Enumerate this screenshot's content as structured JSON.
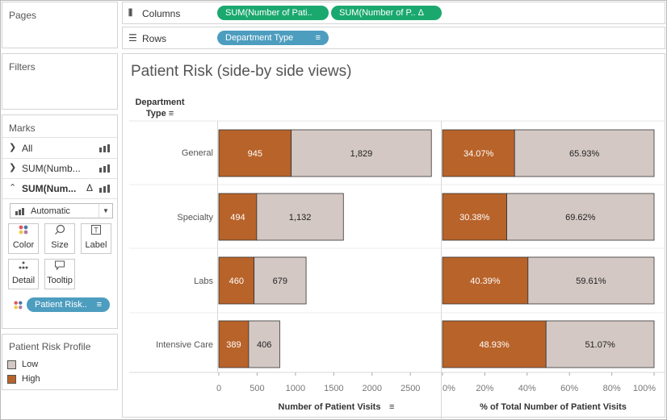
{
  "panels": {
    "pages_title": "Pages",
    "filters_title": "Filters",
    "marks_title": "Marks"
  },
  "shelves": {
    "columns": {
      "label": "Columns",
      "pills": [
        "SUM(Number of Pati..",
        "SUM(Number of P.. Δ"
      ]
    },
    "rows": {
      "label": "Rows",
      "pills": [
        "Department Type"
      ]
    }
  },
  "marks": {
    "rows": [
      {
        "label": "All",
        "expanded": false,
        "delta": ""
      },
      {
        "label": "SUM(Numb...",
        "expanded": false,
        "delta": ""
      },
      {
        "label": "SUM(Num...",
        "expanded": true,
        "delta": "Δ"
      }
    ],
    "mark_type": "Automatic",
    "buttons": [
      "Color",
      "Size",
      "Label",
      "Detail",
      "Tooltip"
    ],
    "color_pill": "Patient Risk.."
  },
  "legend": {
    "title": "Patient Risk Profile",
    "items": [
      {
        "label": "Low",
        "color": "#d4c8c4"
      },
      {
        "label": "High",
        "color": "#b8632a"
      }
    ]
  },
  "chart_data": {
    "type": "bar",
    "title": "Patient Risk (side-by side views)",
    "row_header": [
      "Department",
      "Type"
    ],
    "categories": [
      "General",
      "Specialty",
      "Labs",
      "Intensive Care"
    ],
    "colors": {
      "High": "#b8632a",
      "Low": "#d4c8c4"
    },
    "panes": [
      {
        "xlabel": "Number of Patient Visits",
        "xlim": [
          0,
          2800
        ],
        "ticks": [
          0,
          500,
          1000,
          1500,
          2000,
          2500
        ],
        "tick_labels": [
          "0",
          "500",
          "1000",
          "1500",
          "2000",
          "2500"
        ],
        "series": [
          {
            "name": "High",
            "values": [
              945,
              494,
              460,
              389
            ],
            "labels": [
              "945",
              "494",
              "460",
              "389"
            ]
          },
          {
            "name": "Low",
            "values": [
              1829,
              1132,
              679,
              406
            ],
            "labels": [
              "1,829",
              "1,132",
              "679",
              "406"
            ]
          }
        ]
      },
      {
        "xlabel": "% of Total Number of Patient Visits",
        "xlim": [
          0,
          100
        ],
        "ticks": [
          0,
          20,
          40,
          60,
          80,
          100
        ],
        "tick_labels": [
          "0%",
          "20%",
          "40%",
          "60%",
          "80%",
          "100%"
        ],
        "series": [
          {
            "name": "High",
            "values": [
              34.07,
              30.38,
              40.39,
              48.93
            ],
            "labels": [
              "34.07%",
              "30.38%",
              "40.39%",
              "48.93%"
            ]
          },
          {
            "name": "Low",
            "values": [
              65.93,
              69.62,
              59.61,
              51.07
            ],
            "labels": [
              "65.93%",
              "69.62%",
              "59.61%",
              "51.07%"
            ]
          }
        ]
      }
    ]
  }
}
